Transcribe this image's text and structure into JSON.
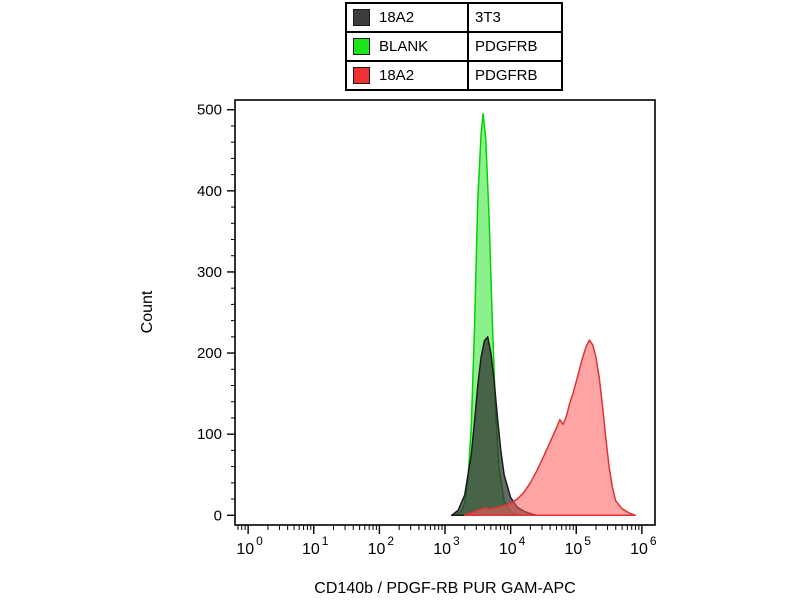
{
  "legend": {
    "rows": [
      {
        "swatch_color": "#3d3d3d",
        "label": "18A2",
        "value": "3T3"
      },
      {
        "swatch_color": "#1ae619",
        "label": "BLANK",
        "value": "PDGFRB"
      },
      {
        "swatch_color": "#f03232",
        "label": "18A2",
        "value": "PDGFRB"
      }
    ]
  },
  "labels": {
    "xlabel": "CD140b / PDGF-RB PUR GAM-APC",
    "ylabel": "Count"
  },
  "chart_data": {
    "type": "area",
    "subtype": "flow-cytometry-histogram-overlay",
    "title": "",
    "xlabel": "CD140b / PDGF-RB PUR GAM-APC",
    "ylabel": "Count",
    "x_scale": "log10",
    "xlim_log": [
      -0.2,
      6.2
    ],
    "ylim": [
      0,
      500
    ],
    "y_major_ticks": [
      0,
      100,
      200,
      300,
      400,
      500
    ],
    "y_minor_step": 20,
    "x_decade_exponents": [
      0,
      1,
      2,
      3,
      4,
      5,
      6
    ],
    "grid": false,
    "legend_position": "top-center",
    "series": [
      {
        "name": "BLANK / PDGFRB",
        "stroke": "#00d400",
        "fill": "#00e000",
        "fill_opacity": 0.45,
        "peak_count": 495,
        "peak_log10_x": 3.58,
        "points": [
          [
            3.15,
            0
          ],
          [
            3.25,
            5
          ],
          [
            3.3,
            15
          ],
          [
            3.35,
            45
          ],
          [
            3.4,
            110
          ],
          [
            3.45,
            230
          ],
          [
            3.5,
            390
          ],
          [
            3.55,
            470
          ],
          [
            3.58,
            495
          ],
          [
            3.62,
            465
          ],
          [
            3.67,
            370
          ],
          [
            3.72,
            240
          ],
          [
            3.77,
            130
          ],
          [
            3.82,
            60
          ],
          [
            3.9,
            18
          ],
          [
            4.0,
            4
          ],
          [
            4.1,
            0
          ]
        ]
      },
      {
        "name": "18A2 / 3T3",
        "stroke": "#1c1c1c",
        "fill": "#2e2e2e",
        "fill_opacity": 0.72,
        "peak_count": 220,
        "peak_log10_x": 3.62,
        "points": [
          [
            3.1,
            0
          ],
          [
            3.2,
            6
          ],
          [
            3.3,
            25
          ],
          [
            3.4,
            75
          ],
          [
            3.45,
            115
          ],
          [
            3.5,
            160
          ],
          [
            3.55,
            195
          ],
          [
            3.6,
            215
          ],
          [
            3.65,
            220
          ],
          [
            3.7,
            200
          ],
          [
            3.75,
            165
          ],
          [
            3.8,
            120
          ],
          [
            3.85,
            80
          ],
          [
            3.9,
            50
          ],
          [
            4.0,
            22
          ],
          [
            4.1,
            10
          ],
          [
            4.2,
            5
          ],
          [
            4.3,
            2
          ],
          [
            4.4,
            0
          ]
        ]
      },
      {
        "name": "18A2 / PDGFRB",
        "stroke": "#e03232",
        "fill": "#ff5a5a",
        "fill_opacity": 0.55,
        "peak_count": 216,
        "peak_log10_x": 5.2,
        "points": [
          [
            3.3,
            0
          ],
          [
            3.5,
            6
          ],
          [
            3.6,
            9
          ],
          [
            3.7,
            8
          ],
          [
            3.8,
            10
          ],
          [
            3.9,
            12
          ],
          [
            4.0,
            15
          ],
          [
            4.1,
            20
          ],
          [
            4.2,
            28
          ],
          [
            4.3,
            40
          ],
          [
            4.4,
            55
          ],
          [
            4.5,
            72
          ],
          [
            4.6,
            90
          ],
          [
            4.7,
            108
          ],
          [
            4.75,
            118
          ],
          [
            4.8,
            112
          ],
          [
            4.85,
            122
          ],
          [
            4.9,
            138
          ],
          [
            4.95,
            150
          ],
          [
            5.0,
            165
          ],
          [
            5.05,
            180
          ],
          [
            5.1,
            195
          ],
          [
            5.15,
            208
          ],
          [
            5.2,
            216
          ],
          [
            5.25,
            210
          ],
          [
            5.3,
            195
          ],
          [
            5.35,
            170
          ],
          [
            5.4,
            135
          ],
          [
            5.45,
            95
          ],
          [
            5.5,
            60
          ],
          [
            5.55,
            35
          ],
          [
            5.6,
            18
          ],
          [
            5.7,
            8
          ],
          [
            5.8,
            3
          ],
          [
            5.9,
            0
          ]
        ]
      }
    ]
  }
}
